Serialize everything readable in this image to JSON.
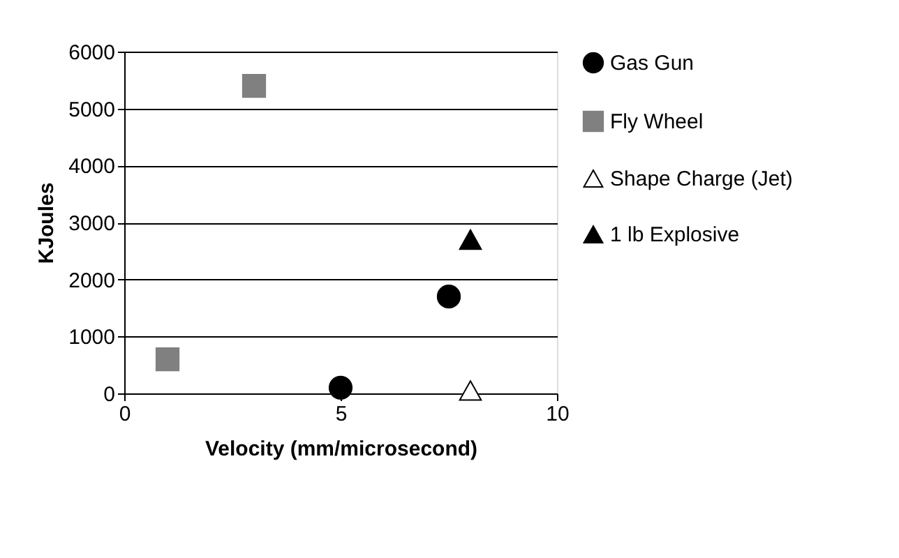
{
  "chart_data": {
    "type": "scatter",
    "xlabel": "Velocity (mm/microsecond)",
    "ylabel": "KJoules",
    "xlim": [
      0,
      10
    ],
    "xticks": [
      0,
      5,
      10
    ],
    "ylim": [
      0,
      6000
    ],
    "yticks": [
      0,
      1000,
      2000,
      3000,
      4000,
      5000,
      6000
    ],
    "grid": "y",
    "legend": "right",
    "series": [
      {
        "name": "Gas Gun",
        "color": "#000000",
        "marker": "circle",
        "x": [
          5,
          7.5
        ],
        "values": [
          100,
          1700
        ]
      },
      {
        "name": "Fly Wheel",
        "color": "#808080",
        "marker": "square",
        "x": [
          1,
          3
        ],
        "values": [
          600,
          5400
        ]
      },
      {
        "name": "Shape Charge (Jet)",
        "color": "#ffffff",
        "marker": "triangle",
        "x": [
          8
        ],
        "values": [
          50
        ]
      },
      {
        "name": "1 lb Explosive",
        "color": "#000000",
        "marker": "triangle",
        "x": [
          8
        ],
        "values": [
          2700
        ]
      }
    ]
  }
}
